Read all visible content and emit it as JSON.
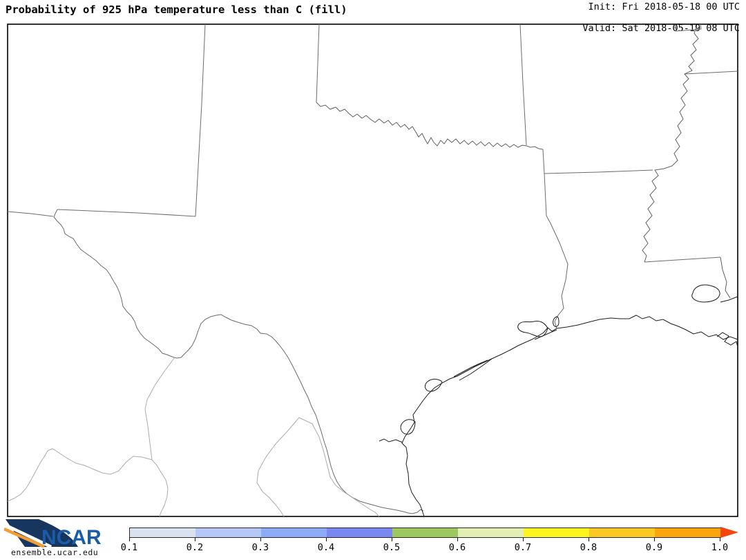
{
  "header": {
    "title": "Probability of 925 hPa temperature less than C (fill)",
    "init_line": "Init: Fri 2018-05-18 00 UTC",
    "valid_line": "Valid: Sat 2018-05-19 08 UTC"
  },
  "colorbar": {
    "tick_labels": [
      "0.1",
      "0.2",
      "0.3",
      "0.4",
      "0.5",
      "0.6",
      "0.7",
      "0.8",
      "0.9",
      "1.0"
    ],
    "segment_colors": [
      "#d9e2ef",
      "#b5c9f9",
      "#8dabf7",
      "#7a88ef",
      "#9dc75f",
      "#e3eeb5",
      "#fdf51d",
      "#fcc822",
      "#fba60e"
    ],
    "arrow_color": "#f5440e",
    "outline_color": "#2a2a2a"
  },
  "map": {
    "frame_color": "#000000",
    "state_line_color": "#6b6b6b",
    "coast_line_color": "#1c1c1c",
    "mexico_line_color": "#ababab"
  },
  "footer": {
    "logo_text": "NCAR",
    "site": "ensemble.ucar.edu",
    "logo_navy": "#16355f",
    "logo_blue": "#1b5ca8",
    "logo_orange": "#f59d31",
    "logo_white": "#ffffff"
  }
}
